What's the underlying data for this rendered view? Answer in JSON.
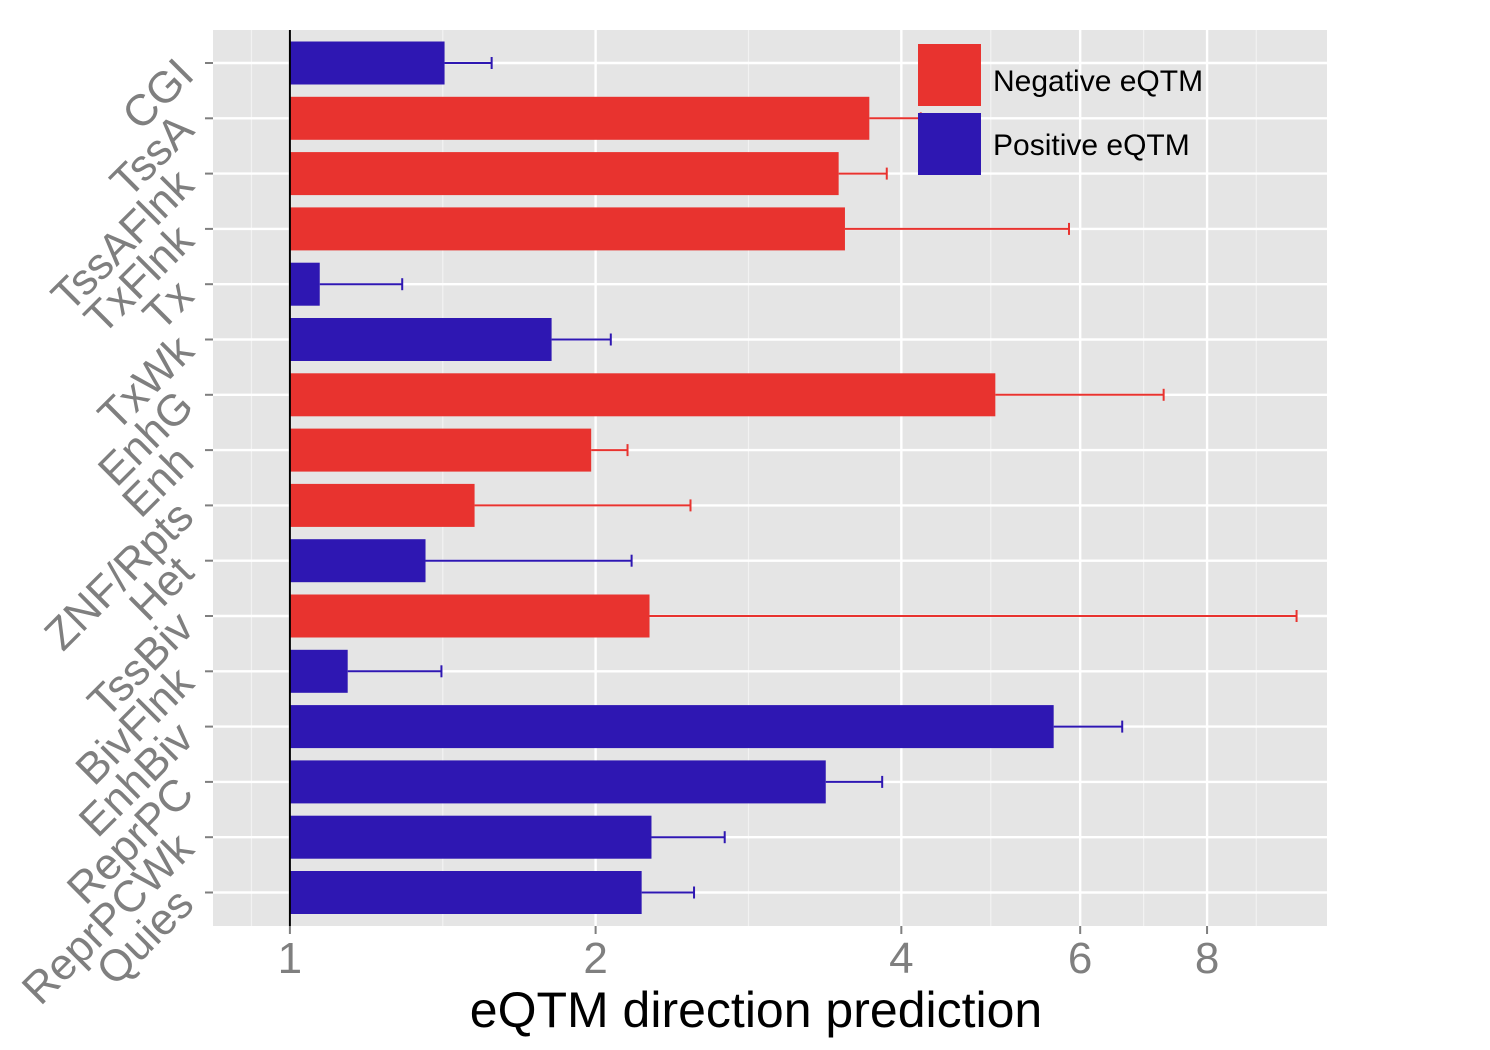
{
  "chart_data": {
    "type": "bar",
    "orientation": "horizontal",
    "xscale": "log2",
    "title": "",
    "xlabel": "eQTM direction prediction",
    "ylabel": "",
    "xlim": [
      0.84,
      10.5
    ],
    "baseline": 1,
    "xticks": [
      1,
      2,
      4,
      6,
      8
    ],
    "xtick_labels": [
      "1",
      "2",
      "4",
      "6",
      "8"
    ],
    "categories": [
      "CGI",
      "TssA",
      "TssAFlnk",
      "TxFlnk",
      "Tx",
      "TxWk",
      "EnhG",
      "Enh",
      "ZNF/Rpts",
      "Het",
      "TssBiv",
      "BivFlnk",
      "EnhBiv",
      "ReprPC",
      "ReprPCWk",
      "Quies"
    ],
    "values": [
      1.42,
      3.72,
      3.47,
      3.52,
      1.07,
      1.81,
      4.95,
      1.98,
      1.52,
      1.36,
      2.26,
      1.14,
      5.65,
      3.37,
      2.27,
      2.22
    ],
    "error_upper": [
      1.58,
      4.18,
      3.87,
      5.85,
      1.29,
      2.07,
      7.25,
      2.15,
      2.48,
      2.17,
      9.8,
      1.41,
      6.6,
      3.83,
      2.68,
      2.5
    ],
    "groups": [
      "Positive eQTM",
      "Negative eQTM",
      "Negative eQTM",
      "Negative eQTM",
      "Positive eQTM",
      "Positive eQTM",
      "Negative eQTM",
      "Negative eQTM",
      "Negative eQTM",
      "Positive eQTM",
      "Negative eQTM",
      "Positive eQTM",
      "Positive eQTM",
      "Positive eQTM",
      "Positive eQTM",
      "Positive eQTM"
    ],
    "legend": {
      "position": "top-right",
      "entries": [
        {
          "label": "Negative eQTM",
          "color": "#e8332f"
        },
        {
          "label": "Positive eQTM",
          "color": "#2e17b2"
        }
      ]
    },
    "grid": true,
    "background": "#e5e5e5"
  }
}
